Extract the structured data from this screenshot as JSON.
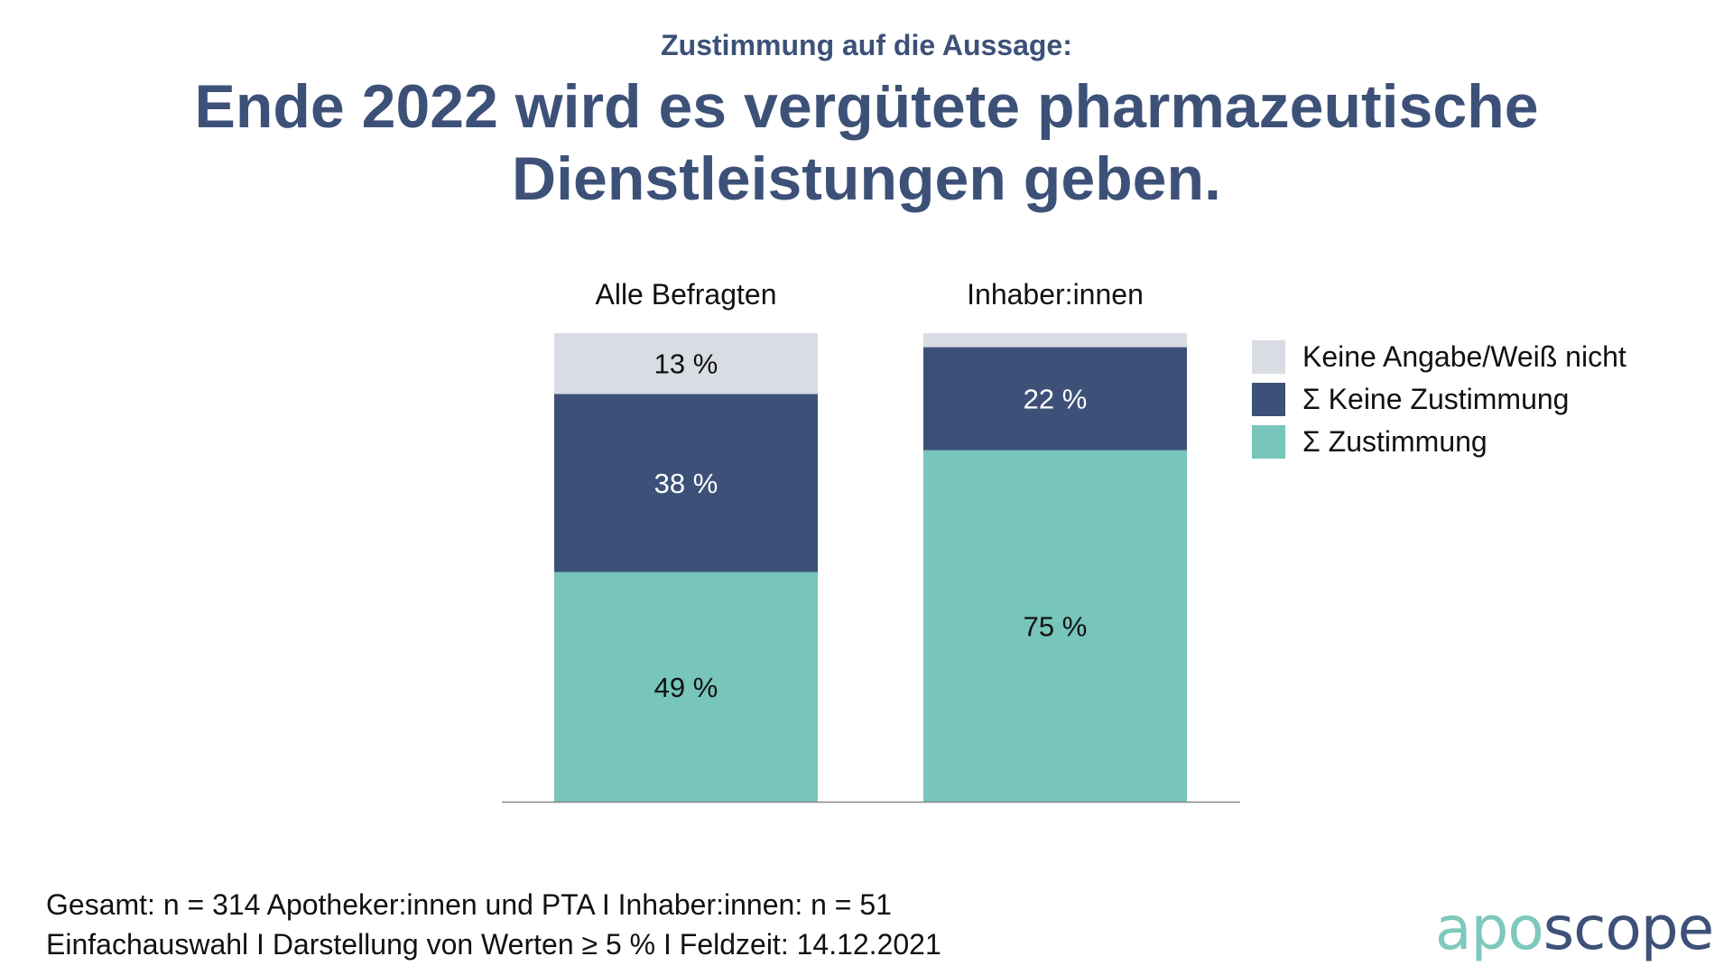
{
  "header": {
    "subtitle": "Zustimmung auf die Aussage:",
    "title_line1": "Ende 2022 wird es vergütete pharmazeutische",
    "title_line2": "Dienstleistungen geben."
  },
  "chart_data": {
    "type": "bar",
    "stacked": true,
    "orientation": "vertical",
    "categories": [
      "Alle Befragten",
      "Inhaber:innen"
    ],
    "series": [
      {
        "name": "Σ Zustimmung",
        "values": [
          49,
          75
        ],
        "labels": [
          "49 %",
          "75 %"
        ],
        "color": "#77c5bb",
        "label_color": "#111111"
      },
      {
        "name": "Σ Keine Zustimmung",
        "values": [
          38,
          22
        ],
        "labels": [
          "38 %",
          "22 %"
        ],
        "color": "#3d5178",
        "label_color": "#ffffff"
      },
      {
        "name": "Keine Angabe/Weiß nicht",
        "values": [
          13,
          3
        ],
        "labels": [
          "13 %",
          ""
        ],
        "color": "#d9dce2",
        "label_color": "#111111"
      }
    ],
    "legend_order": [
      "Keine Angabe/Weiß nicht",
      "Σ Keine Zustimmung",
      "Σ Zustimmung"
    ],
    "legend_position": "right",
    "ylim": [
      0,
      100
    ],
    "axis_line_color": "#888888"
  },
  "footnote": {
    "line1": "Gesamt: n = 314 Apotheker:innen und PTA I Inhaber:innen: n = 51",
    "line2": "Einfachauswahl I Darstellung von Werten ≥ 5 % I Feldzeit: 14.12.2021"
  },
  "logo": {
    "part1": "apo",
    "part2": "scope"
  }
}
